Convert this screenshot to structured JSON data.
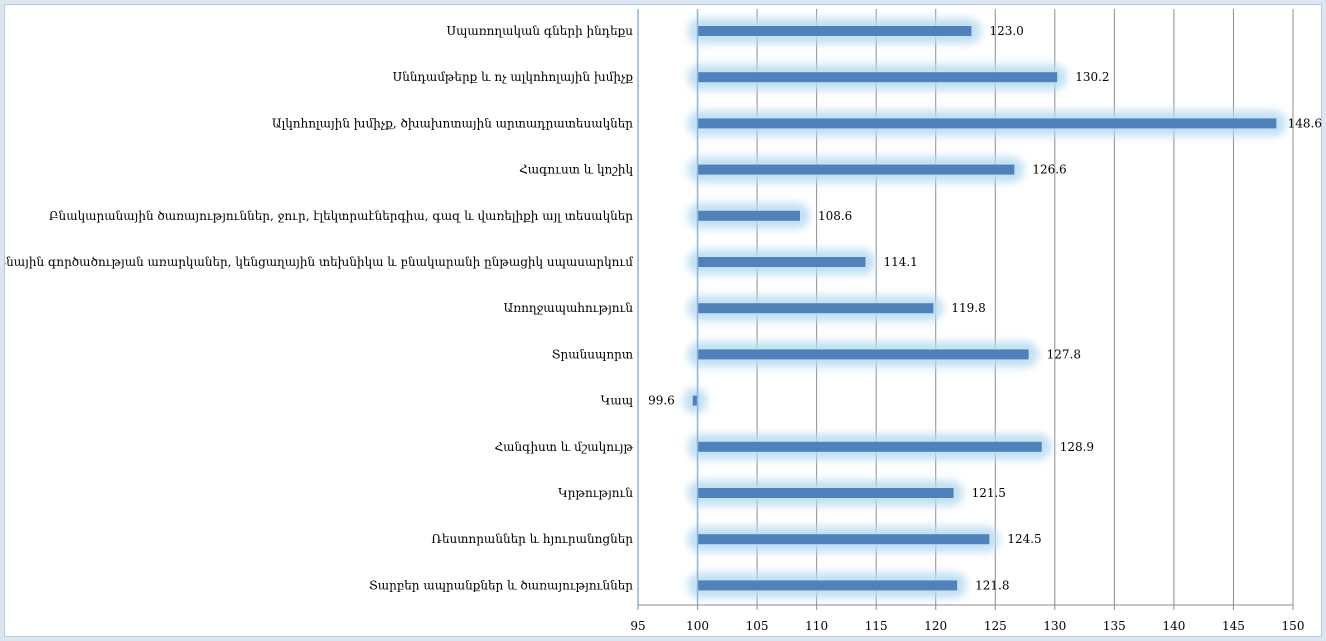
{
  "chart_data": {
    "type": "bar",
    "orientation": "horizontal",
    "title": "",
    "xlabel": "",
    "ylabel": "",
    "xlim": [
      95,
      150
    ],
    "xticks": [
      95,
      100,
      105,
      110,
      115,
      120,
      125,
      130,
      135,
      140,
      145,
      150
    ],
    "baseline": 100,
    "grid": "vertical",
    "legend": "none",
    "bar_color": "#4f81bd",
    "glow_color": "#b7dcf0",
    "categories": [
      "Սպառողական գների ինդեքս",
      "Սննդամթերք և ոչ ալկոհոլային խմիչք",
      "Ալկոհոլային խմիչք, ծխախոտային արտադրատեսակներ",
      "Հագուստ և կոշիկ",
      "Բնակարանային ծառայություններ, ջուր, էլեկտրաէներգիա, գազ և վառելիքի այլ տեսակներ",
      "Տնային գործածության առարկաներ, կենցաղային տեխնիկա և բնակարանի ընթացիկ սպասարկում",
      "Առողջապահություն",
      "Տրանսպորտ",
      "Կապ",
      "Հանգիստ և մշակույթ",
      "Կրթություն",
      "Ռեստորաններ և հյուրանոցներ",
      "Տարբեր ապրանքներ և ծառայություններ"
    ],
    "values": [
      123.0,
      130.2,
      148.6,
      126.6,
      108.6,
      114.1,
      119.8,
      127.8,
      99.6,
      128.9,
      121.5,
      124.5,
      121.8
    ],
    "value_labels": [
      "123.0",
      "130.2",
      "148.6",
      "126.6",
      "108.6",
      "114.1",
      "119.8",
      "127.8",
      "99.6",
      "128.9",
      "121.5",
      "124.5",
      "121.8"
    ]
  }
}
